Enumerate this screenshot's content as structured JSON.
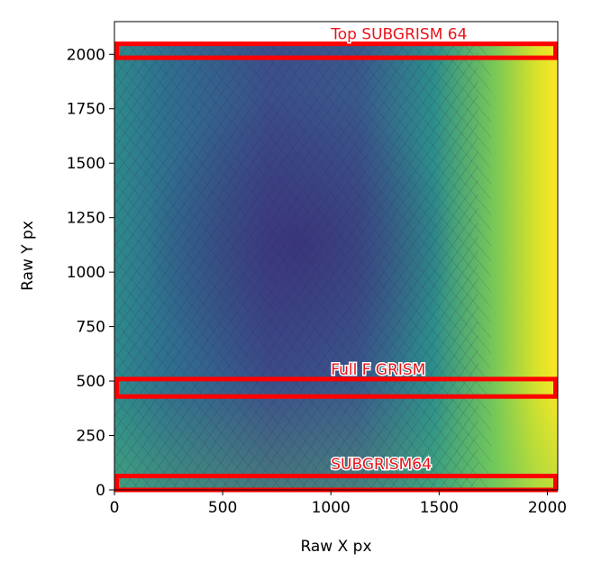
{
  "chart_data": {
    "type": "heatmap",
    "title": "",
    "xlabel": "Raw X px",
    "ylabel": "Raw Y px",
    "xlim": [
      0,
      2048
    ],
    "ylim": [
      0,
      2150
    ],
    "xticks": [
      0,
      500,
      1000,
      1500,
      2000
    ],
    "yticks": [
      0,
      250,
      500,
      750,
      1000,
      1250,
      1500,
      1750,
      2000
    ],
    "colormap": "viridis",
    "image_extent": {
      "x": [
        0,
        2048
      ],
      "y": [
        0,
        2048
      ]
    },
    "regions": [
      {
        "label": "Top SUBGRISM 64",
        "x": [
          0,
          2048
        ],
        "y": [
          1984,
          2048
        ],
        "label_x": 1000,
        "label_y": 2070
      },
      {
        "label": "Full F GRISM",
        "x": [
          0,
          2048
        ],
        "y": [
          429,
          509
        ],
        "label_x": 1000,
        "label_y": 530
      },
      {
        "label": "SUBGRISM64",
        "x": [
          0,
          2048
        ],
        "y": [
          0,
          64
        ],
        "label_x": 1000,
        "label_y": 95
      }
    ],
    "region_color": "#ff0000",
    "grid": false
  }
}
